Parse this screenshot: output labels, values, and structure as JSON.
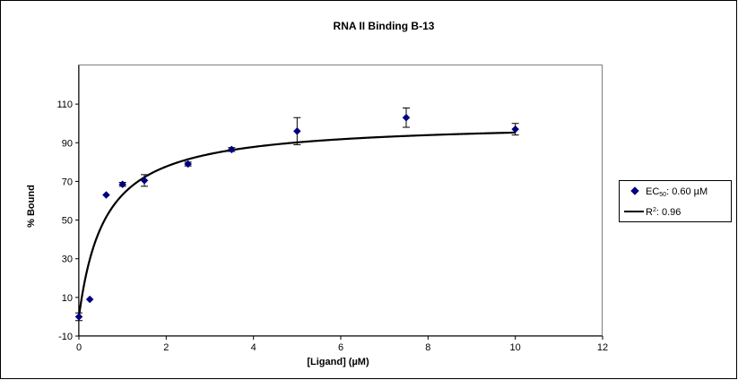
{
  "chart_data": {
    "type": "scatter",
    "title": "RNA II Binding B-13",
    "xlabel": "[Ligand] (µM)",
    "ylabel": "% Bound",
    "xlim": [
      0,
      12
    ],
    "ylim": [
      -10,
      130
    ],
    "x_ticks": [
      0,
      2,
      4,
      6,
      8,
      10,
      12
    ],
    "y_ticks": [
      -10,
      10,
      30,
      50,
      70,
      90,
      110
    ],
    "grid": false,
    "legend_position": "right",
    "series": [
      {
        "name": "EC50: 0.60 µM",
        "kind": "scatter",
        "marker": "diamond",
        "color": "#000080",
        "x": [
          0,
          0.25,
          0.625,
          1,
          1.5,
          2.5,
          3.5,
          5,
          7.5,
          10
        ],
        "y": [
          0,
          9,
          63,
          68.5,
          70.5,
          79,
          86.5,
          96,
          103,
          97
        ],
        "err": [
          2,
          0,
          0,
          1,
          3,
          1,
          1,
          7,
          5,
          3
        ]
      },
      {
        "name": "R2: 0.96",
        "kind": "line",
        "color": "#000000",
        "model": "Bmax*x/(EC50+x)",
        "params": {
          "Bmax": 101,
          "EC50": 0.6
        }
      }
    ]
  },
  "legend": {
    "ec50_prefix": "EC",
    "ec50_sub": "50",
    "ec50_value": ": 0.60 µM",
    "r2_prefix": "R",
    "r2_sup": "2",
    "r2_value": ": 0.96"
  }
}
